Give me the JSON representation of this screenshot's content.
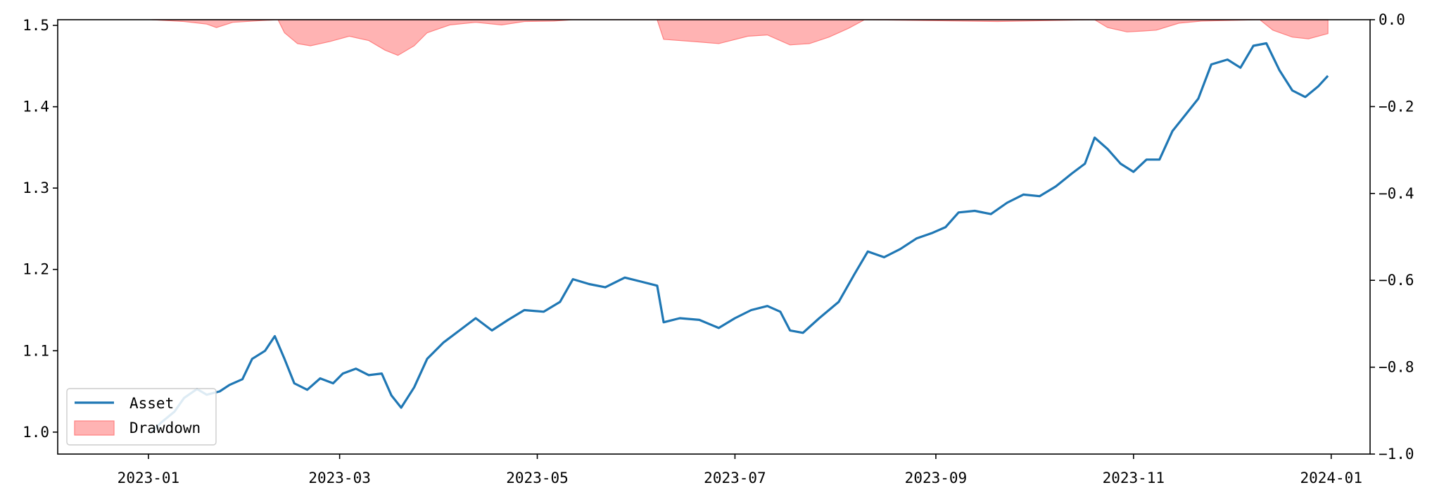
{
  "chart_data": {
    "type": "line",
    "title": "",
    "xlabel": "",
    "ylabel": "",
    "y2label": "",
    "x_range": [
      "2022-12-04",
      "2024-01-13"
    ],
    "x_ticks": [
      "2023-01",
      "2023-03",
      "2023-05",
      "2023-07",
      "2023-09",
      "2023-11",
      "2024-01"
    ],
    "y_ticks": [
      1.0,
      1.1,
      1.2,
      1.3,
      1.4,
      1.5
    ],
    "ylim": [
      0.973,
      1.507
    ],
    "y2_ticks": [
      0.0,
      -0.2,
      -0.4,
      -0.6,
      -0.8,
      -1.0
    ],
    "y2lim": [
      -1.0,
      0.0
    ],
    "grid": false,
    "legend_position": "lower-left",
    "series": [
      {
        "name": "Asset",
        "axis": "left",
        "color": "#1f77b4",
        "points": [
          [
            "2023-01-02",
            1.0
          ],
          [
            "2023-01-05",
            1.012
          ],
          [
            "2023-01-09",
            1.025
          ],
          [
            "2023-01-12",
            1.042
          ],
          [
            "2023-01-16",
            1.053
          ],
          [
            "2023-01-19",
            1.046
          ],
          [
            "2023-01-23",
            1.05
          ],
          [
            "2023-01-26",
            1.058
          ],
          [
            "2023-01-30",
            1.065
          ],
          [
            "2023-02-02",
            1.09
          ],
          [
            "2023-02-06",
            1.1
          ],
          [
            "2023-02-09",
            1.118
          ],
          [
            "2023-02-12",
            1.09
          ],
          [
            "2023-02-15",
            1.06
          ],
          [
            "2023-02-19",
            1.052
          ],
          [
            "2023-02-23",
            1.066
          ],
          [
            "2023-02-27",
            1.06
          ],
          [
            "2023-03-02",
            1.072
          ],
          [
            "2023-03-06",
            1.078
          ],
          [
            "2023-03-10",
            1.07
          ],
          [
            "2023-03-14",
            1.072
          ],
          [
            "2023-03-17",
            1.045
          ],
          [
            "2023-03-20",
            1.03
          ],
          [
            "2023-03-24",
            1.055
          ],
          [
            "2023-03-28",
            1.09
          ],
          [
            "2023-04-02",
            1.11
          ],
          [
            "2023-04-07",
            1.125
          ],
          [
            "2023-04-12",
            1.14
          ],
          [
            "2023-04-17",
            1.125
          ],
          [
            "2023-04-22",
            1.138
          ],
          [
            "2023-04-27",
            1.15
          ],
          [
            "2023-05-03",
            1.148
          ],
          [
            "2023-05-08",
            1.16
          ],
          [
            "2023-05-12",
            1.188
          ],
          [
            "2023-05-17",
            1.182
          ],
          [
            "2023-05-22",
            1.178
          ],
          [
            "2023-05-28",
            1.19
          ],
          [
            "2023-06-02",
            1.185
          ],
          [
            "2023-06-07",
            1.18
          ],
          [
            "2023-06-09",
            1.135
          ],
          [
            "2023-06-14",
            1.14
          ],
          [
            "2023-06-20",
            1.138
          ],
          [
            "2023-06-26",
            1.128
          ],
          [
            "2023-07-01",
            1.14
          ],
          [
            "2023-07-06",
            1.15
          ],
          [
            "2023-07-11",
            1.155
          ],
          [
            "2023-07-15",
            1.148
          ],
          [
            "2023-07-18",
            1.125
          ],
          [
            "2023-07-22",
            1.122
          ],
          [
            "2023-07-27",
            1.14
          ],
          [
            "2023-08-02",
            1.16
          ],
          [
            "2023-08-07",
            1.195
          ],
          [
            "2023-08-11",
            1.222
          ],
          [
            "2023-08-16",
            1.215
          ],
          [
            "2023-08-21",
            1.225
          ],
          [
            "2023-08-26",
            1.238
          ],
          [
            "2023-08-31",
            1.245
          ],
          [
            "2023-09-04",
            1.252
          ],
          [
            "2023-09-08",
            1.27
          ],
          [
            "2023-09-13",
            1.272
          ],
          [
            "2023-09-18",
            1.268
          ],
          [
            "2023-09-23",
            1.282
          ],
          [
            "2023-09-28",
            1.292
          ],
          [
            "2023-10-03",
            1.29
          ],
          [
            "2023-10-08",
            1.302
          ],
          [
            "2023-10-13",
            1.318
          ],
          [
            "2023-10-17",
            1.33
          ],
          [
            "2023-10-20",
            1.362
          ],
          [
            "2023-10-24",
            1.348
          ],
          [
            "2023-10-28",
            1.33
          ],
          [
            "2023-11-01",
            1.32
          ],
          [
            "2023-11-05",
            1.335
          ],
          [
            "2023-11-09",
            1.335
          ],
          [
            "2023-11-13",
            1.37
          ],
          [
            "2023-11-17",
            1.39
          ],
          [
            "2023-11-21",
            1.41
          ],
          [
            "2023-11-25",
            1.452
          ],
          [
            "2023-11-30",
            1.458
          ],
          [
            "2023-12-04",
            1.448
          ],
          [
            "2023-12-08",
            1.475
          ],
          [
            "2023-12-12",
            1.478
          ],
          [
            "2023-12-16",
            1.445
          ],
          [
            "2023-12-20",
            1.42
          ],
          [
            "2023-12-24",
            1.412
          ],
          [
            "2023-12-28",
            1.425
          ],
          [
            "2023-12-31",
            1.438
          ]
        ]
      },
      {
        "name": "Drawdown",
        "axis": "right",
        "type": "area",
        "color": "#ffb3b3",
        "edge_color": "#ff7f7f",
        "points": [
          [
            "2023-01-02",
            0.0
          ],
          [
            "2023-01-12",
            -0.004
          ],
          [
            "2023-01-19",
            -0.01
          ],
          [
            "2023-01-22",
            -0.018
          ],
          [
            "2023-01-27",
            -0.006
          ],
          [
            "2023-02-05",
            -0.002
          ],
          [
            "2023-02-10",
            0.0
          ],
          [
            "2023-02-12",
            -0.03
          ],
          [
            "2023-02-16",
            -0.055
          ],
          [
            "2023-02-20",
            -0.06
          ],
          [
            "2023-02-26",
            -0.05
          ],
          [
            "2023-03-04",
            -0.038
          ],
          [
            "2023-03-10",
            -0.048
          ],
          [
            "2023-03-15",
            -0.07
          ],
          [
            "2023-03-19",
            -0.082
          ],
          [
            "2023-03-24",
            -0.06
          ],
          [
            "2023-03-28",
            -0.03
          ],
          [
            "2023-04-04",
            -0.012
          ],
          [
            "2023-04-12",
            -0.006
          ],
          [
            "2023-04-20",
            -0.012
          ],
          [
            "2023-04-27",
            -0.004
          ],
          [
            "2023-05-06",
            -0.003
          ],
          [
            "2023-05-12",
            0.0
          ],
          [
            "2023-06-07",
            0.0
          ],
          [
            "2023-06-09",
            -0.045
          ],
          [
            "2023-06-18",
            -0.05
          ],
          [
            "2023-06-26",
            -0.055
          ],
          [
            "2023-07-05",
            -0.038
          ],
          [
            "2023-07-11",
            -0.035
          ],
          [
            "2023-07-18",
            -0.058
          ],
          [
            "2023-07-24",
            -0.055
          ],
          [
            "2023-07-30",
            -0.04
          ],
          [
            "2023-08-05",
            -0.02
          ],
          [
            "2023-08-10",
            0.0
          ],
          [
            "2023-09-20",
            -0.004
          ],
          [
            "2023-10-20",
            0.0
          ],
          [
            "2023-10-24",
            -0.018
          ],
          [
            "2023-10-30",
            -0.028
          ],
          [
            "2023-11-04",
            -0.026
          ],
          [
            "2023-11-08",
            -0.024
          ],
          [
            "2023-11-15",
            -0.008
          ],
          [
            "2023-11-22",
            -0.003
          ],
          [
            "2023-12-10",
            0.0
          ],
          [
            "2023-12-14",
            -0.024
          ],
          [
            "2023-12-20",
            -0.04
          ],
          [
            "2023-12-25",
            -0.044
          ],
          [
            "2023-12-31",
            -0.032
          ]
        ]
      }
    ]
  }
}
